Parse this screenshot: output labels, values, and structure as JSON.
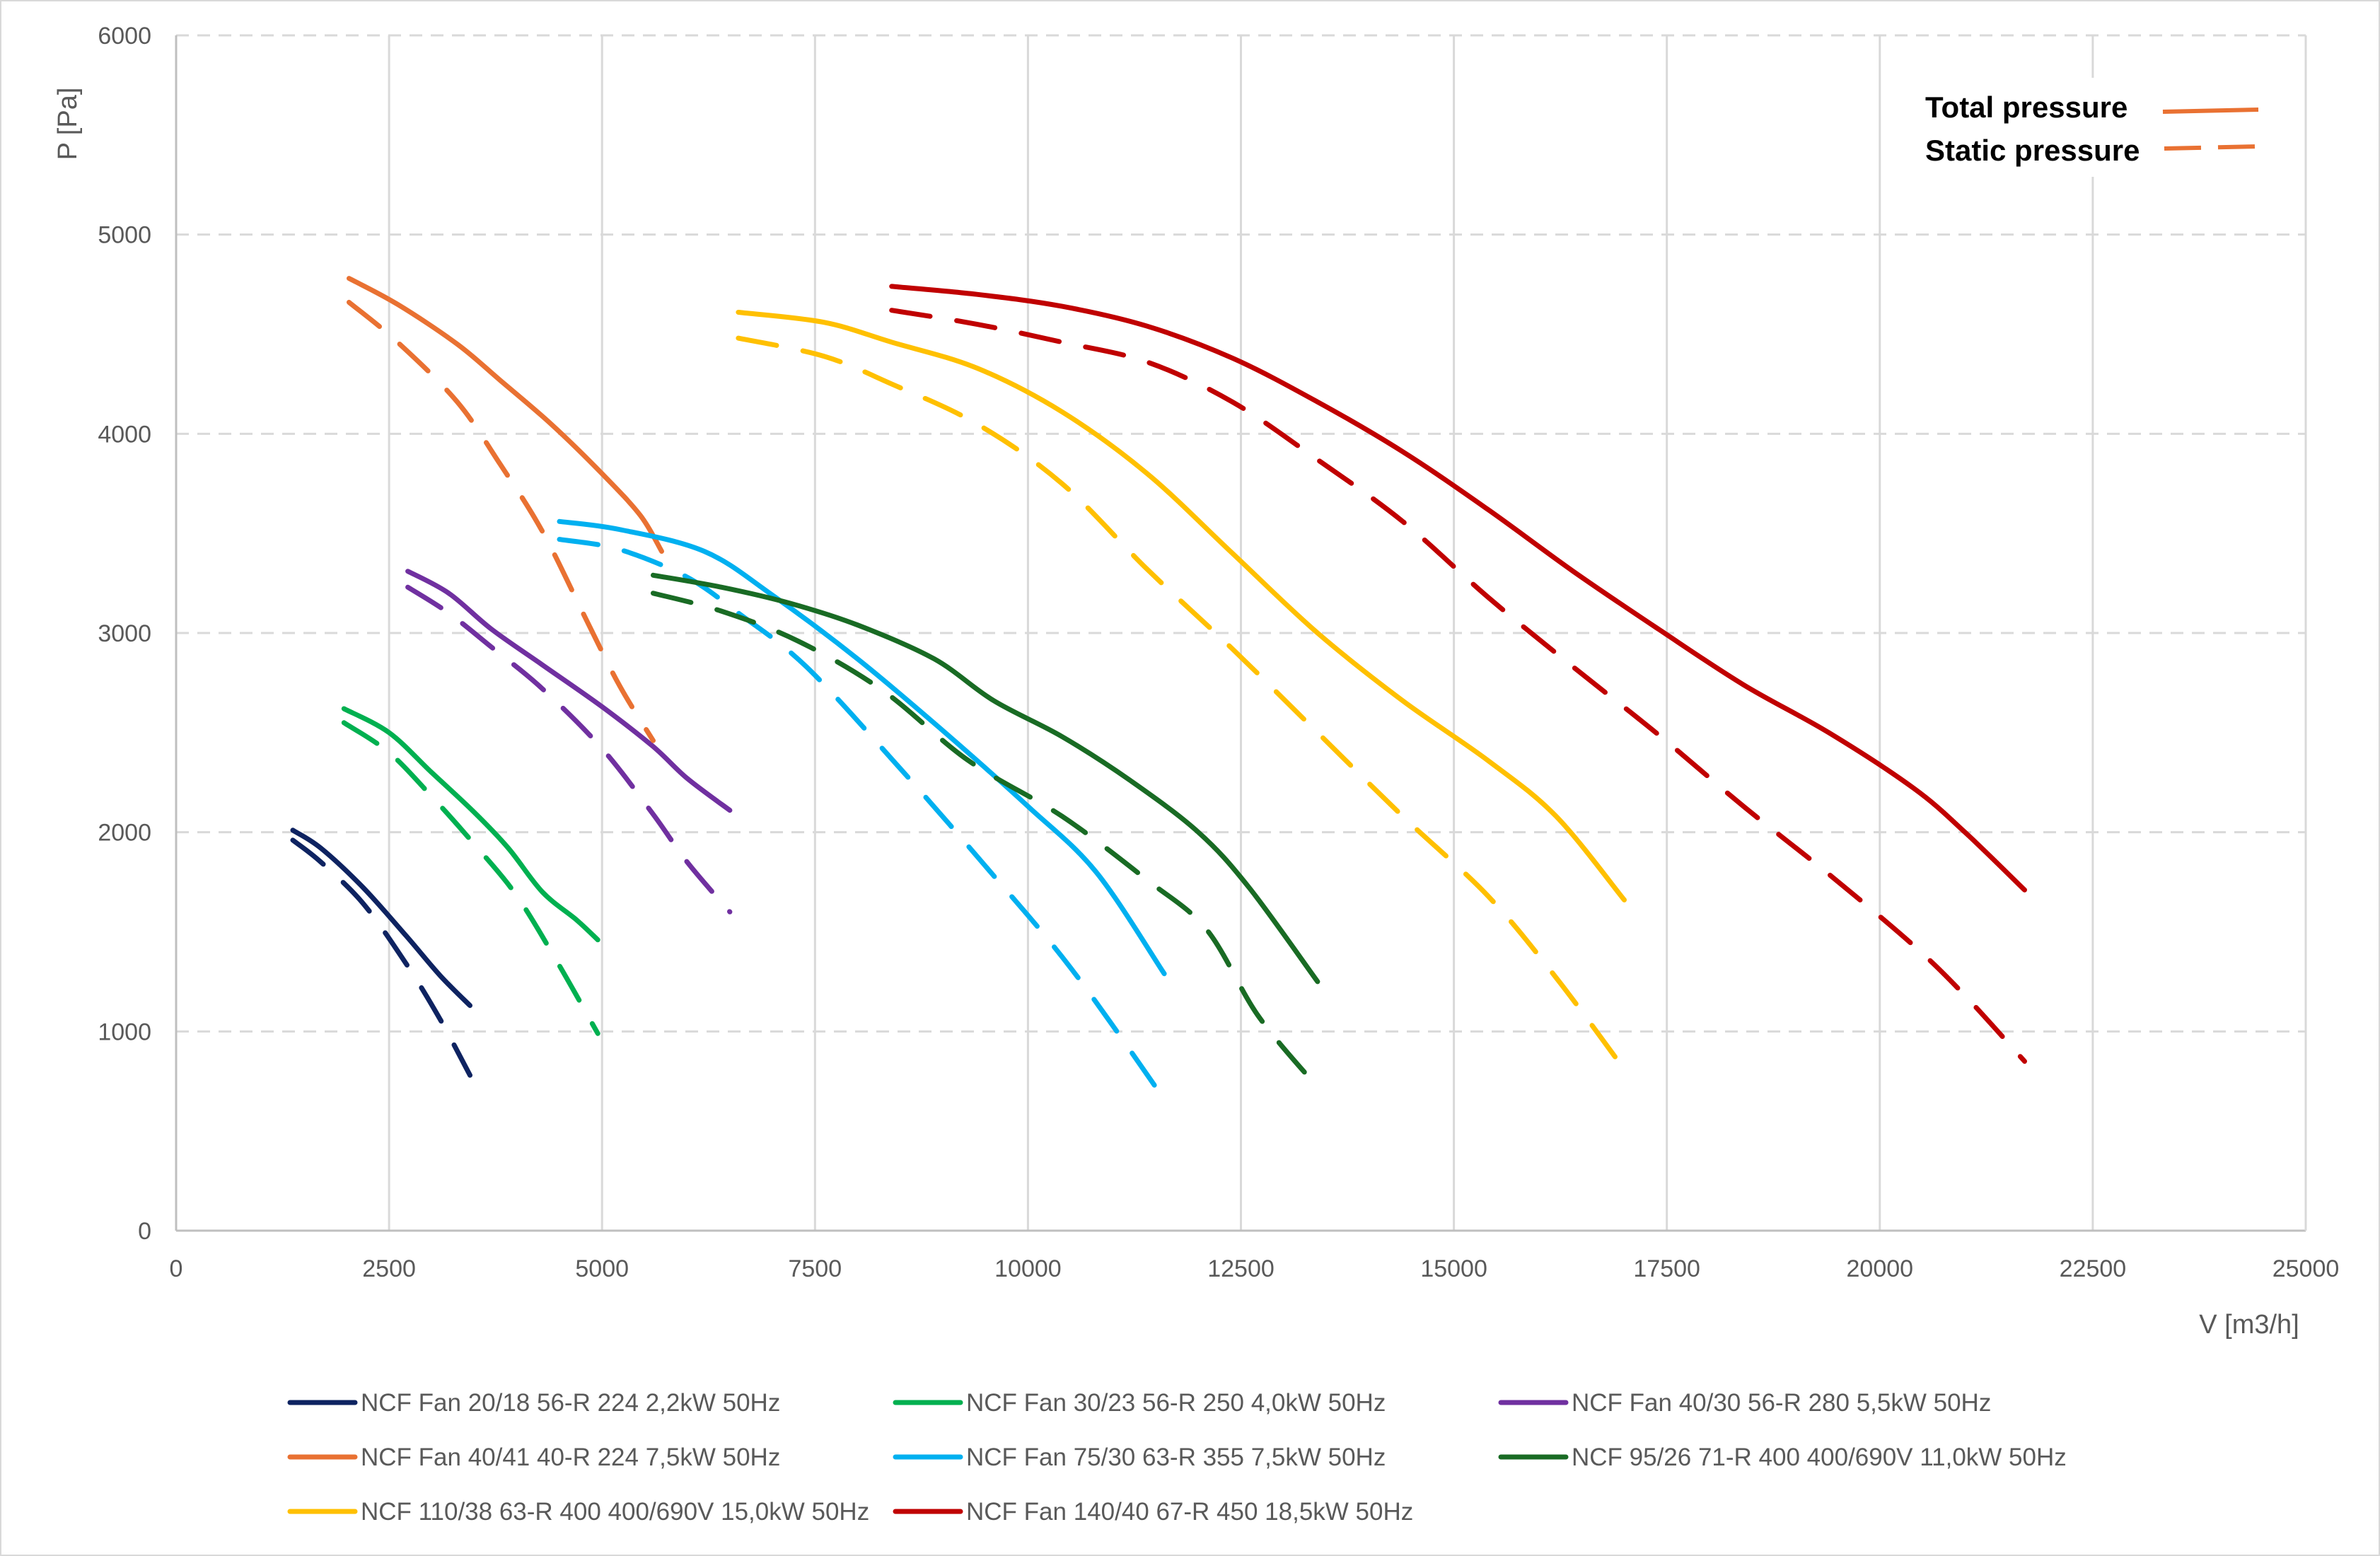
{
  "chart_data": {
    "type": "line",
    "title": "",
    "xlabel": "V [m3/h]",
    "ylabel": "P [Pa]",
    "xlim": [
      0,
      25000
    ],
    "ylim": [
      0,
      6000
    ],
    "x_ticks": [
      "0",
      "2500",
      "5000",
      "7500",
      "10000",
      "12500",
      "15000",
      "17500",
      "20000",
      "22500",
      "25000"
    ],
    "y_ticks": [
      "0",
      "1000",
      "2000",
      "3000",
      "4000",
      "5000",
      "6000"
    ],
    "grid": {
      "vertical": "solid",
      "horizontal": "dashed"
    },
    "legend_position": "bottom",
    "pressure_legend": {
      "position": "top-right",
      "items": [
        {
          "label": "Total pressure",
          "style": "solid",
          "color": "#e97132"
        },
        {
          "label": "Static pressure",
          "style": "dashed",
          "color": "#e97132"
        }
      ]
    },
    "series": [
      {
        "name": "NCF Fan 20/18 56-R 224 2,2kW 50Hz",
        "color": "#0e2361",
        "total": [
          [
            1370,
            2010
          ],
          [
            1700,
            1920
          ],
          [
            2200,
            1720
          ],
          [
            2700,
            1480
          ],
          [
            3100,
            1280
          ],
          [
            3450,
            1130
          ]
        ],
        "static": [
          [
            1370,
            1960
          ],
          [
            1700,
            1850
          ],
          [
            2200,
            1640
          ],
          [
            2700,
            1340
          ],
          [
            3100,
            1060
          ],
          [
            3450,
            780
          ]
        ]
      },
      {
        "name": "NCF Fan 30/23 56-R 250 4,0kW 50Hz",
        "color": "#00b050",
        "total": [
          [
            1970,
            2620
          ],
          [
            2500,
            2500
          ],
          [
            3000,
            2300
          ],
          [
            3500,
            2100
          ],
          [
            3900,
            1920
          ],
          [
            4300,
            1700
          ],
          [
            4700,
            1560
          ],
          [
            4950,
            1460
          ]
        ],
        "static": [
          [
            1970,
            2550
          ],
          [
            2500,
            2400
          ],
          [
            3000,
            2180
          ],
          [
            3500,
            1940
          ],
          [
            4000,
            1680
          ],
          [
            4500,
            1330
          ],
          [
            4950,
            990
          ]
        ]
      },
      {
        "name": "NCF Fan 40/30 56-R 280 5,5kW 50Hz",
        "color": "#7030a0",
        "total": [
          [
            2720,
            3310
          ],
          [
            3200,
            3200
          ],
          [
            3700,
            3020
          ],
          [
            4300,
            2840
          ],
          [
            5000,
            2630
          ],
          [
            5600,
            2430
          ],
          [
            6000,
            2270
          ],
          [
            6500,
            2110
          ]
        ],
        "static": [
          [
            2720,
            3230
          ],
          [
            3200,
            3100
          ],
          [
            3700,
            2930
          ],
          [
            4300,
            2720
          ],
          [
            5000,
            2420
          ],
          [
            5600,
            2090
          ],
          [
            6000,
            1850
          ],
          [
            6500,
            1600
          ]
        ]
      },
      {
        "name": "NCF Fan 40/41 40-R 224 7,5kW 50Hz",
        "color": "#e97132",
        "total": [
          [
            2030,
            4780
          ],
          [
            2600,
            4650
          ],
          [
            3300,
            4450
          ],
          [
            3800,
            4270
          ],
          [
            4400,
            4050
          ],
          [
            5000,
            3800
          ],
          [
            5450,
            3590
          ],
          [
            5700,
            3410
          ]
        ],
        "static": [
          [
            2030,
            4660
          ],
          [
            2600,
            4460
          ],
          [
            3300,
            4160
          ],
          [
            3800,
            3850
          ],
          [
            4300,
            3510
          ],
          [
            4800,
            3080
          ],
          [
            5200,
            2740
          ],
          [
            5600,
            2460
          ]
        ]
      },
      {
        "name": "NCF Fan 75/30 63-R 355 7,5kW 50Hz",
        "color": "#00b0f0",
        "total": [
          [
            4500,
            3560
          ],
          [
            5200,
            3520
          ],
          [
            6200,
            3410
          ],
          [
            7000,
            3190
          ],
          [
            8000,
            2870
          ],
          [
            9000,
            2510
          ],
          [
            10000,
            2130
          ],
          [
            10800,
            1800
          ],
          [
            11600,
            1290
          ]
        ],
        "static": [
          [
            4500,
            3470
          ],
          [
            5200,
            3420
          ],
          [
            6000,
            3280
          ],
          [
            6600,
            3100
          ],
          [
            7400,
            2830
          ],
          [
            8500,
            2320
          ],
          [
            9500,
            1830
          ],
          [
            10500,
            1320
          ],
          [
            11600,
            660
          ]
        ]
      },
      {
        "name": "NCF 95/26 71-R 400 400/690V 11,0kW 50Hz",
        "color": "#196b24",
        "total": [
          [
            5600,
            3290
          ],
          [
            6400,
            3230
          ],
          [
            7200,
            3150
          ],
          [
            8000,
            3040
          ],
          [
            8900,
            2870
          ],
          [
            9600,
            2660
          ],
          [
            10400,
            2480
          ],
          [
            11200,
            2260
          ],
          [
            12000,
            2000
          ],
          [
            12600,
            1720
          ],
          [
            13400,
            1250
          ]
        ],
        "static": [
          [
            5600,
            3200
          ],
          [
            6400,
            3110
          ],
          [
            7300,
            2960
          ],
          [
            8300,
            2710
          ],
          [
            9300,
            2360
          ],
          [
            10400,
            2080
          ],
          [
            11400,
            1760
          ],
          [
            12100,
            1510
          ],
          [
            12700,
            1080
          ],
          [
            13400,
            720
          ]
        ]
      },
      {
        "name": "NCF 110/38 63-R 400 400/690V 15,0kW 50Hz",
        "color": "#ffc000",
        "total": [
          [
            6600,
            4610
          ],
          [
            7600,
            4560
          ],
          [
            8400,
            4460
          ],
          [
            9400,
            4330
          ],
          [
            10400,
            4110
          ],
          [
            11400,
            3800
          ],
          [
            12400,
            3400
          ],
          [
            13400,
            3000
          ],
          [
            14400,
            2660
          ],
          [
            15400,
            2360
          ],
          [
            16200,
            2080
          ],
          [
            17000,
            1660
          ]
        ],
        "static": [
          [
            6600,
            4480
          ],
          [
            7600,
            4390
          ],
          [
            8400,
            4250
          ],
          [
            9400,
            4050
          ],
          [
            10400,
            3750
          ],
          [
            11400,
            3320
          ],
          [
            12400,
            2920
          ],
          [
            13400,
            2500
          ],
          [
            14400,
            2080
          ],
          [
            15400,
            1680
          ],
          [
            16200,
            1270
          ],
          [
            17000,
            810
          ]
        ]
      },
      {
        "name": "NCF Fan 140/40 67-R 450 18,5kW 50Hz",
        "color": "#c00000",
        "total": [
          [
            8400,
            4740
          ],
          [
            9400,
            4700
          ],
          [
            10400,
            4640
          ],
          [
            11400,
            4540
          ],
          [
            12400,
            4380
          ],
          [
            13400,
            4160
          ],
          [
            14400,
            3910
          ],
          [
            15400,
            3620
          ],
          [
            16400,
            3310
          ],
          [
            17400,
            3020
          ],
          [
            18400,
            2740
          ],
          [
            19400,
            2500
          ],
          [
            20400,
            2220
          ],
          [
            21000,
            2000
          ],
          [
            21700,
            1710
          ]
        ],
        "static": [
          [
            8400,
            4620
          ],
          [
            9400,
            4550
          ],
          [
            10400,
            4460
          ],
          [
            11400,
            4360
          ],
          [
            12400,
            4160
          ],
          [
            13400,
            3870
          ],
          [
            14400,
            3560
          ],
          [
            15400,
            3180
          ],
          [
            16400,
            2830
          ],
          [
            17400,
            2490
          ],
          [
            18400,
            2130
          ],
          [
            19400,
            1790
          ],
          [
            20400,
            1430
          ],
          [
            21000,
            1180
          ],
          [
            21700,
            850
          ]
        ]
      }
    ]
  }
}
